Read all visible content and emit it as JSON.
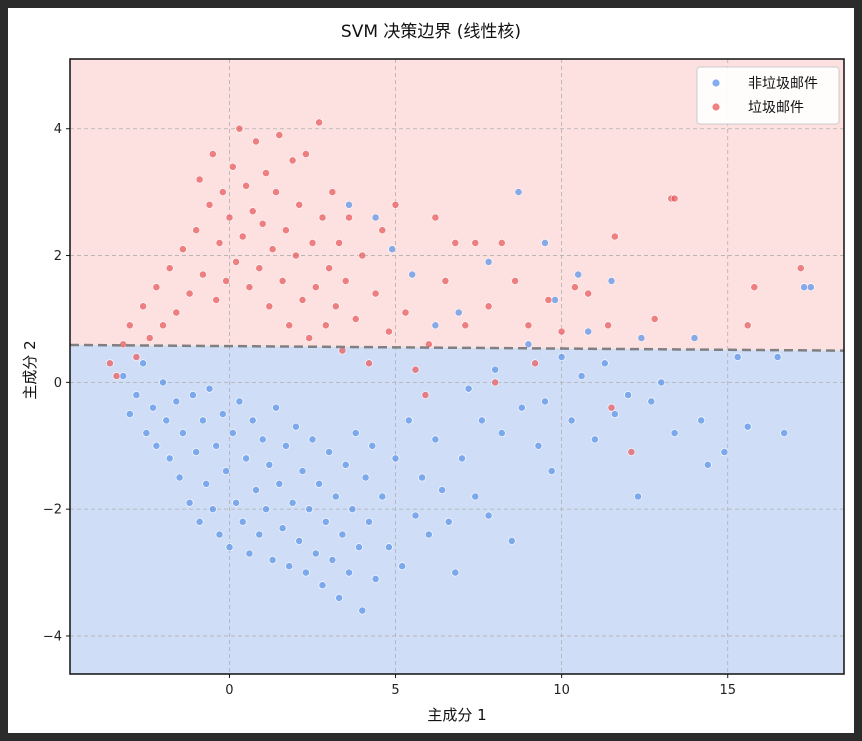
{
  "chart_data": {
    "type": "scatter",
    "title": "SVM 决策边界 (线性核)",
    "xlabel": "主成分 1",
    "ylabel": "主成分 2",
    "xlim": [
      -4.8,
      18.5
    ],
    "ylim": [
      -4.6,
      5.1
    ],
    "xticks": [
      0,
      5,
      10,
      15
    ],
    "yticks": [
      -4,
      -2,
      0,
      2,
      4
    ],
    "xtick_labels": [
      "0",
      "5",
      "10",
      "15"
    ],
    "ytick_labels": [
      "−4",
      "−2",
      "0",
      "2",
      "4"
    ],
    "grid": true,
    "legend_position": "top-right",
    "decision_boundary": {
      "style": "dashed",
      "color": "#808080",
      "x": [
        -4.8,
        18.5
      ],
      "y": [
        0.59,
        0.5
      ]
    },
    "regions": [
      {
        "class": "垃圾邮件",
        "side": "above boundary",
        "color": "#fde0e0"
      },
      {
        "class": "非垃圾邮件",
        "side": "below boundary",
        "color": "#d0ddf7"
      }
    ],
    "series": [
      {
        "name": "非垃圾邮件",
        "color": "#5b93e8",
        "points": [
          [
            -3.2,
            0.1
          ],
          [
            -3.0,
            -0.5
          ],
          [
            -2.8,
            -0.2
          ],
          [
            -2.6,
            0.3
          ],
          [
            -2.5,
            -0.8
          ],
          [
            -2.3,
            -0.4
          ],
          [
            -2.2,
            -1.0
          ],
          [
            -2.0,
            0.0
          ],
          [
            -1.9,
            -0.6
          ],
          [
            -1.8,
            -1.2
          ],
          [
            -1.6,
            -0.3
          ],
          [
            -1.5,
            -1.5
          ],
          [
            -1.4,
            -0.8
          ],
          [
            -1.2,
            -1.9
          ],
          [
            -1.1,
            -0.2
          ],
          [
            -1.0,
            -1.1
          ],
          [
            -0.9,
            -2.2
          ],
          [
            -0.8,
            -0.6
          ],
          [
            -0.7,
            -1.6
          ],
          [
            -0.6,
            -0.1
          ],
          [
            -0.5,
            -2.0
          ],
          [
            -0.4,
            -1.0
          ],
          [
            -0.3,
            -2.4
          ],
          [
            -0.2,
            -0.5
          ],
          [
            -0.1,
            -1.4
          ],
          [
            0.0,
            -2.6
          ],
          [
            0.1,
            -0.8
          ],
          [
            0.2,
            -1.9
          ],
          [
            0.3,
            -0.3
          ],
          [
            0.4,
            -2.2
          ],
          [
            0.5,
            -1.2
          ],
          [
            0.6,
            -2.7
          ],
          [
            0.7,
            -0.6
          ],
          [
            0.8,
            -1.7
          ],
          [
            0.9,
            -2.4
          ],
          [
            1.0,
            -0.9
          ],
          [
            1.1,
            -2.0
          ],
          [
            1.2,
            -1.3
          ],
          [
            1.3,
            -2.8
          ],
          [
            1.4,
            -0.4
          ],
          [
            1.5,
            -1.6
          ],
          [
            1.6,
            -2.3
          ],
          [
            1.7,
            -1.0
          ],
          [
            1.8,
            -2.9
          ],
          [
            1.9,
            -1.9
          ],
          [
            2.0,
            -0.7
          ],
          [
            2.1,
            -2.5
          ],
          [
            2.2,
            -1.4
          ],
          [
            2.3,
            -3.0
          ],
          [
            2.4,
            -2.0
          ],
          [
            2.5,
            -0.9
          ],
          [
            2.6,
            -2.7
          ],
          [
            2.7,
            -1.6
          ],
          [
            2.8,
            -3.2
          ],
          [
            2.9,
            -2.2
          ],
          [
            3.0,
            -1.1
          ],
          [
            3.1,
            -2.8
          ],
          [
            3.2,
            -1.8
          ],
          [
            3.3,
            -3.4
          ],
          [
            3.4,
            -2.4
          ],
          [
            3.5,
            -1.3
          ],
          [
            3.6,
            -3.0
          ],
          [
            3.7,
            -2.0
          ],
          [
            3.8,
            -0.8
          ],
          [
            3.9,
            -2.6
          ],
          [
            4.0,
            -3.6
          ],
          [
            4.1,
            -1.5
          ],
          [
            4.2,
            -2.2
          ],
          [
            4.3,
            -1.0
          ],
          [
            4.4,
            -3.1
          ],
          [
            4.6,
            -1.8
          ],
          [
            4.8,
            -2.6
          ],
          [
            5.0,
            -1.2
          ],
          [
            5.2,
            -2.9
          ],
          [
            5.4,
            -0.6
          ],
          [
            5.6,
            -2.1
          ],
          [
            5.8,
            -1.5
          ],
          [
            6.0,
            -2.4
          ],
          [
            6.2,
            -0.9
          ],
          [
            6.4,
            -1.7
          ],
          [
            6.6,
            -2.2
          ],
          [
            6.8,
            -3.0
          ],
          [
            7.0,
            -1.2
          ],
          [
            7.2,
            -0.1
          ],
          [
            7.4,
            -1.8
          ],
          [
            7.6,
            -0.6
          ],
          [
            7.8,
            -2.1
          ],
          [
            8.0,
            0.2
          ],
          [
            8.2,
            -0.8
          ],
          [
            8.5,
            -2.5
          ],
          [
            8.8,
            -0.4
          ],
          [
            9.0,
            0.6
          ],
          [
            9.3,
            -1.0
          ],
          [
            9.5,
            -0.3
          ],
          [
            9.7,
            -1.4
          ],
          [
            10.0,
            0.4
          ],
          [
            10.3,
            -0.6
          ],
          [
            10.6,
            0.1
          ],
          [
            11.0,
            -0.9
          ],
          [
            11.3,
            0.3
          ],
          [
            11.6,
            -0.5
          ],
          [
            12.0,
            -0.2
          ],
          [
            12.3,
            -1.8
          ],
          [
            12.7,
            -0.3
          ],
          [
            13.0,
            0.0
          ],
          [
            13.4,
            -0.8
          ],
          [
            14.2,
            -0.6
          ],
          [
            14.4,
            -1.3
          ],
          [
            14.9,
            -1.1
          ],
          [
            15.3,
            0.4
          ],
          [
            15.6,
            -0.7
          ],
          [
            16.5,
            0.4
          ],
          [
            16.7,
            -0.8
          ],
          [
            17.3,
            1.5
          ],
          [
            17.5,
            1.5
          ],
          [
            14.0,
            0.7
          ],
          [
            8.7,
            3.0
          ],
          [
            9.5,
            2.2
          ],
          [
            10.5,
            1.7
          ],
          [
            11.5,
            1.6
          ],
          [
            7.8,
            1.9
          ],
          [
            6.9,
            1.1
          ],
          [
            5.5,
            1.7
          ],
          [
            4.9,
            2.1
          ],
          [
            4.4,
            2.6
          ],
          [
            3.6,
            2.8
          ],
          [
            6.2,
            0.9
          ],
          [
            10.8,
            0.8
          ],
          [
            12.4,
            0.7
          ],
          [
            9.8,
            1.3
          ]
        ]
      },
      {
        "name": "垃圾邮件",
        "color": "#e8595b",
        "points": [
          [
            -3.6,
            0.3
          ],
          [
            -3.4,
            0.1
          ],
          [
            -3.2,
            0.6
          ],
          [
            -3.0,
            0.9
          ],
          [
            -2.8,
            0.4
          ],
          [
            -2.6,
            1.2
          ],
          [
            -2.4,
            0.7
          ],
          [
            -2.2,
            1.5
          ],
          [
            -2.0,
            0.9
          ],
          [
            -1.8,
            1.8
          ],
          [
            -1.6,
            1.1
          ],
          [
            -1.4,
            2.1
          ],
          [
            -1.2,
            1.4
          ],
          [
            -1.0,
            2.4
          ],
          [
            -0.9,
            3.2
          ],
          [
            -0.8,
            1.7
          ],
          [
            -0.6,
            2.8
          ],
          [
            -0.5,
            3.6
          ],
          [
            -0.4,
            1.3
          ],
          [
            -0.3,
            2.2
          ],
          [
            -0.2,
            3.0
          ],
          [
            -0.1,
            1.6
          ],
          [
            0.0,
            2.6
          ],
          [
            0.1,
            3.4
          ],
          [
            0.2,
            1.9
          ],
          [
            0.3,
            4.0
          ],
          [
            0.4,
            2.3
          ],
          [
            0.5,
            3.1
          ],
          [
            0.6,
            1.5
          ],
          [
            0.7,
            2.7
          ],
          [
            0.8,
            3.8
          ],
          [
            0.9,
            1.8
          ],
          [
            1.0,
            2.5
          ],
          [
            1.1,
            3.3
          ],
          [
            1.2,
            1.2
          ],
          [
            1.3,
            2.1
          ],
          [
            1.4,
            3.0
          ],
          [
            1.5,
            3.9
          ],
          [
            1.6,
            1.6
          ],
          [
            1.7,
            2.4
          ],
          [
            1.8,
            0.9
          ],
          [
            1.9,
            3.5
          ],
          [
            2.0,
            2.0
          ],
          [
            2.1,
            2.8
          ],
          [
            2.2,
            1.3
          ],
          [
            2.3,
            3.6
          ],
          [
            2.4,
            0.7
          ],
          [
            2.5,
            2.2
          ],
          [
            2.6,
            1.5
          ],
          [
            2.7,
            4.1
          ],
          [
            2.8,
            2.6
          ],
          [
            2.9,
            0.9
          ],
          [
            3.0,
            1.8
          ],
          [
            3.1,
            3.0
          ],
          [
            3.2,
            1.2
          ],
          [
            3.3,
            2.2
          ],
          [
            3.4,
            0.5
          ],
          [
            3.5,
            1.6
          ],
          [
            3.6,
            2.6
          ],
          [
            3.8,
            1.0
          ],
          [
            4.0,
            2.0
          ],
          [
            4.2,
            0.3
          ],
          [
            4.4,
            1.4
          ],
          [
            4.6,
            2.4
          ],
          [
            4.8,
            0.8
          ],
          [
            5.0,
            2.8
          ],
          [
            5.3,
            1.1
          ],
          [
            5.6,
            0.2
          ],
          [
            5.9,
            -0.2
          ],
          [
            6.2,
            2.6
          ],
          [
            6.5,
            1.6
          ],
          [
            6.8,
            2.2
          ],
          [
            7.1,
            0.9
          ],
          [
            7.4,
            2.2
          ],
          [
            7.8,
            1.2
          ],
          [
            8.2,
            2.2
          ],
          [
            8.6,
            1.6
          ],
          [
            9.0,
            0.9
          ],
          [
            9.2,
            0.3
          ],
          [
            9.6,
            1.3
          ],
          [
            10.0,
            0.8
          ],
          [
            10.4,
            1.5
          ],
          [
            10.8,
            1.4
          ],
          [
            11.4,
            0.9
          ],
          [
            11.6,
            2.3
          ],
          [
            12.1,
            -1.1
          ],
          [
            12.8,
            1.0
          ],
          [
            13.3,
            2.9
          ],
          [
            13.4,
            2.9
          ],
          [
            15.6,
            0.9
          ],
          [
            15.8,
            1.5
          ],
          [
            17.2,
            1.8
          ],
          [
            11.5,
            -0.4
          ],
          [
            8.0,
            0.0
          ],
          [
            6.0,
            0.6
          ]
        ]
      }
    ]
  },
  "legend": {
    "items": [
      {
        "label": "非垃圾邮件",
        "color": "#5b93e8"
      },
      {
        "label": "垃圾邮件",
        "color": "#e8595b"
      }
    ]
  }
}
